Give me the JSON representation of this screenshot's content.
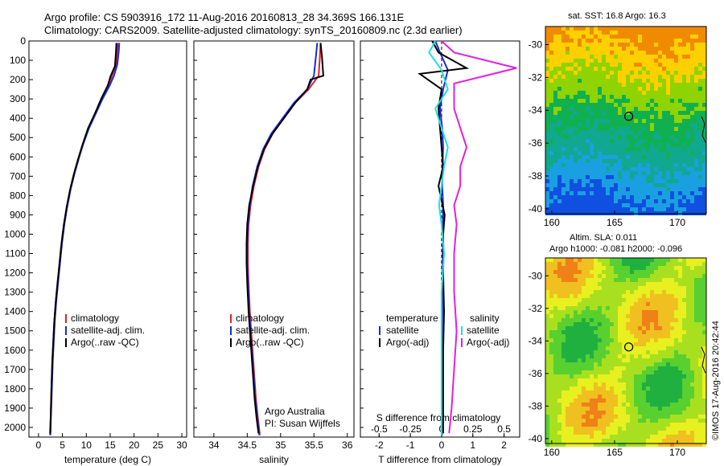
{
  "header": {
    "line1": "Argo profile: CS 5903916_172 11-Aug-2016 20160813_28 34.369S 166.131E",
    "line2": "Climatology: CARS2009. Satellite-adjusted climatology: synTS_20160809.nc (2.3d earlier)"
  },
  "map_top": {
    "title": "sat. SST: 16.8  Argo: 16.3"
  },
  "map_bottom": {
    "title1": "Altim. SLA: 0.011",
    "title2": "Argo h1000: -0.081 h2000: -0.096"
  },
  "credit": "©IMOS 17-Aug-2016 20:42:44",
  "colors": {
    "climatology": "#e0202a",
    "satellite": "#1a2cd8",
    "argo": "#000000",
    "sal_sat": "#22dede",
    "sal_argo": "#e020e0"
  },
  "chart_data": [
    {
      "type": "line",
      "xlabel": "temperature (deg C)",
      "xlim": [
        -2,
        31
      ],
      "ylim": [
        2050,
        0
      ],
      "xticks": [
        "0",
        "5",
        "10",
        "15",
        "20",
        "25",
        "30"
      ],
      "yticks": [
        "0",
        "100",
        "200",
        "300",
        "400",
        "500",
        "600",
        "700",
        "800",
        "900",
        "1000",
        "1100",
        "1200",
        "1300",
        "1400",
        "1500",
        "1600",
        "1700",
        "1800",
        "1900",
        "2000"
      ],
      "legend": [
        "climatology",
        "satellite-adj. clim.",
        "Argo(..raw -QC)"
      ],
      "series": [
        {
          "name": "climatology",
          "color": "#e0202a",
          "x": [
            16.6,
            16.5,
            16.3,
            15.4,
            14.6,
            13.2,
            11.9,
            10.5,
            9.3,
            8.3,
            7.4,
            6.6,
            5.9,
            5.3,
            4.8,
            4.4,
            4.0,
            3.6,
            3.3,
            3.1,
            2.9,
            2.7,
            2.55,
            2.4
          ],
          "y": [
            10,
            50,
            120,
            180,
            230,
            300,
            370,
            450,
            530,
            610,
            690,
            770,
            860,
            950,
            1050,
            1150,
            1250,
            1350,
            1450,
            1550,
            1650,
            1800,
            1950,
            2040
          ]
        },
        {
          "name": "satellite-adj. clim.",
          "color": "#1a2cd8",
          "x": [
            16.9,
            16.8,
            16.5,
            15.8,
            14.9,
            13.4,
            12.1,
            10.6,
            9.4,
            8.4,
            7.5,
            6.7,
            6.0,
            5.4,
            4.9,
            4.5,
            4.1,
            3.7,
            3.4,
            3.2,
            3.0,
            2.8,
            2.6,
            2.5
          ],
          "y": [
            10,
            50,
            120,
            180,
            230,
            300,
            370,
            450,
            530,
            610,
            690,
            770,
            860,
            950,
            1050,
            1150,
            1250,
            1350,
            1450,
            1550,
            1650,
            1800,
            1950,
            2040
          ]
        },
        {
          "name": "Argo(..raw -QC)",
          "color": "#000000",
          "x": [
            16.3,
            16.2,
            16.0,
            15.1,
            14.5,
            13.1,
            11.9,
            10.4,
            9.3,
            8.3,
            7.4,
            6.6,
            5.9,
            5.3,
            4.8,
            4.4,
            4.0,
            3.6,
            3.3,
            3.1,
            2.9,
            2.7,
            2.55,
            2.45
          ],
          "y": [
            10,
            60,
            130,
            180,
            230,
            300,
            370,
            450,
            530,
            610,
            690,
            770,
            860,
            950,
            1050,
            1150,
            1250,
            1350,
            1450,
            1550,
            1650,
            1800,
            1950,
            2030
          ]
        }
      ]
    },
    {
      "type": "line",
      "xlabel": "salinity",
      "xlim": [
        33.7,
        36.1
      ],
      "ylim": [
        2050,
        0
      ],
      "xticks": [
        "34",
        "34.5",
        "35",
        "35.5",
        "36"
      ],
      "legend": [
        "climatology",
        "satellite-adj. clim.",
        "Argo(..raw -QC)"
      ],
      "annotation": [
        "Argo Australia",
        "PI: Susan Wijffels"
      ],
      "series": [
        {
          "name": "climatology",
          "color": "#e0202a",
          "x": [
            35.6,
            35.59,
            35.57,
            35.42,
            35.22,
            35.05,
            34.88,
            34.76,
            34.67,
            34.6,
            34.55,
            34.52,
            34.51,
            34.51,
            34.52,
            34.54,
            34.57,
            34.6,
            34.63,
            34.66,
            34.69
          ],
          "y": [
            10,
            80,
            180,
            250,
            320,
            400,
            480,
            560,
            650,
            750,
            850,
            950,
            1050,
            1150,
            1250,
            1400,
            1550,
            1700,
            1850,
            1950,
            2040
          ]
        },
        {
          "name": "satellite-adj. clim.",
          "color": "#1a2cd8",
          "x": [
            35.55,
            35.53,
            35.5,
            35.4,
            35.2,
            35.03,
            34.86,
            34.74,
            34.65,
            34.58,
            34.54,
            34.51,
            34.5,
            34.5,
            34.51,
            34.53,
            34.56,
            34.59,
            34.62,
            34.65,
            34.68
          ],
          "y": [
            10,
            80,
            180,
            250,
            320,
            400,
            480,
            560,
            650,
            750,
            850,
            950,
            1050,
            1150,
            1250,
            1400,
            1550,
            1700,
            1850,
            1950,
            2040
          ]
        },
        {
          "name": "Argo(..raw -QC)",
          "color": "#000000",
          "x": [
            35.6,
            35.62,
            35.64,
            35.45,
            35.4,
            35.22,
            35.05,
            34.88,
            34.75,
            34.66,
            34.59,
            34.53,
            34.5,
            34.49,
            34.49,
            34.5,
            34.52,
            34.55,
            34.58,
            34.61,
            34.64,
            34.67
          ],
          "y": [
            10,
            80,
            180,
            200,
            250,
            320,
            400,
            480,
            560,
            650,
            750,
            850,
            950,
            1050,
            1150,
            1250,
            1400,
            1550,
            1700,
            1850,
            1950,
            2030
          ]
        }
      ]
    },
    {
      "type": "line",
      "xlabel": "T difference from climatology",
      "xlabel_top": "S difference from climatology",
      "xlim": [
        -2.6,
        2.5
      ],
      "ylim": [
        2050,
        0
      ],
      "xticks": [
        "-2",
        "-1",
        "0",
        "1",
        "2"
      ],
      "xticks_top": [
        "-0.5",
        "-0.25",
        "0",
        "0.25",
        "0.5"
      ],
      "legend_left_title": "temperature",
      "legend_left": [
        "satellite",
        "Argo(-adj)"
      ],
      "legend_right_title": "salinity",
      "legend_right": [
        "satellite",
        "Argo(-adj)"
      ],
      "series": [
        {
          "name": "T satellite",
          "color": "#1a2cd8",
          "x": [
            -0.2,
            -0.05,
            0.2,
            0.05,
            -0.05,
            0.02,
            0.05,
            0.03,
            0.02,
            0.05,
            0.04,
            0.04,
            0.03,
            0.03,
            0.02,
            0.02,
            0.02,
            0.02,
            0.02
          ],
          "y": [
            0,
            60,
            150,
            250,
            350,
            450,
            550,
            650,
            750,
            850,
            950,
            1050,
            1200,
            1350,
            1500,
            1650,
            1800,
            1950,
            2040
          ]
        },
        {
          "name": "T Argo(-adj)",
          "color": "#000000",
          "x": [
            -0.3,
            -0.1,
            0.8,
            -0.7,
            0.0,
            -0.1,
            -0.05,
            0.0,
            0.05,
            -0.1,
            0.1,
            0.05,
            0.06,
            0.05,
            0.08,
            0.05,
            0.05,
            0.05,
            0.05
          ],
          "y": [
            0,
            60,
            140,
            170,
            250,
            350,
            450,
            550,
            650,
            750,
            900,
            1000,
            1100,
            1200,
            1400,
            1600,
            1800,
            1950,
            2030
          ]
        },
        {
          "name": "S satellite",
          "color": "#22dede",
          "x": [
            -0.05,
            -0.1,
            0.0,
            0.05,
            -0.05,
            0.0,
            0.05,
            0.02,
            0.0,
            -0.02,
            0.0,
            0.02,
            0.0,
            0.0,
            0.0,
            0.0,
            0.0
          ],
          "y": [
            0,
            60,
            150,
            250,
            350,
            450,
            550,
            650,
            750,
            850,
            950,
            1100,
            1300,
            1500,
            1700,
            1900,
            2040
          ]
        },
        {
          "name": "S Argo(-adj)",
          "color": "#e020e0",
          "x": [
            0.0,
            0.1,
            0.6,
            0.1,
            0.1,
            0.15,
            0.2,
            0.15,
            0.15,
            0.1,
            0.12,
            0.1,
            0.1,
            0.12,
            0.1,
            0.08,
            0.06
          ],
          "y": [
            0,
            60,
            140,
            220,
            350,
            450,
            550,
            650,
            750,
            850,
            950,
            1100,
            1300,
            1500,
            1700,
            1900,
            2030
          ]
        }
      ]
    },
    {
      "type": "heatmap",
      "title": "sat. SST: 16.8  Argo: 16.3",
      "xlim": [
        159.5,
        172.3
      ],
      "ylim": [
        -40.3,
        -28.9
      ],
      "xticks": [
        "160",
        "165",
        "170"
      ],
      "yticks": [
        "-30",
        "-32",
        "-34",
        "-36",
        "-38",
        "-40"
      ],
      "argo_position": {
        "lon": 166.131,
        "lat": -34.369
      },
      "colormap": [
        "#f08a00",
        "#ffd000",
        "#8fd300",
        "#10b050",
        "#10a890",
        "#1aa0e0",
        "#1050e0"
      ]
    },
    {
      "type": "heatmap",
      "title": "Altim. SLA: 0.011",
      "xlim": [
        159.5,
        172.3
      ],
      "ylim": [
        -40.3,
        -28.9
      ],
      "xticks": [
        "160",
        "165",
        "170"
      ],
      "yticks": [
        "-30",
        "-32",
        "-34",
        "-36",
        "-38",
        "-40"
      ],
      "argo_position": {
        "lon": 166.131,
        "lat": -34.369
      },
      "colormap": [
        "#20b040",
        "#58d030",
        "#a8e020",
        "#e8f020",
        "#f0c020",
        "#f08018"
      ]
    }
  ]
}
